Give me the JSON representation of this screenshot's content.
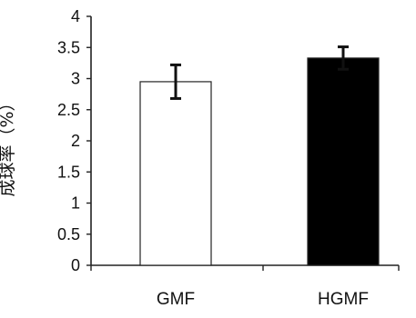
{
  "chart_data": {
    "type": "bar",
    "title": "",
    "xlabel": "",
    "ylabel": "成球率（%）",
    "ylim": [
      0,
      4
    ],
    "yticks": [
      0,
      0.5,
      1,
      1.5,
      2,
      2.5,
      3,
      3.5,
      4
    ],
    "ytick_labels": [
      "0",
      "0.5",
      "1",
      "1.5",
      "2",
      "2.5",
      "3",
      "3.5",
      "4"
    ],
    "categories": [
      "GMF",
      "HGMF"
    ],
    "values": [
      2.95,
      3.33
    ],
    "error_bars": [
      0.27,
      0.18
    ],
    "bar_colors": [
      "#ffffff",
      "#000000"
    ],
    "grid": false,
    "legend": "none"
  }
}
